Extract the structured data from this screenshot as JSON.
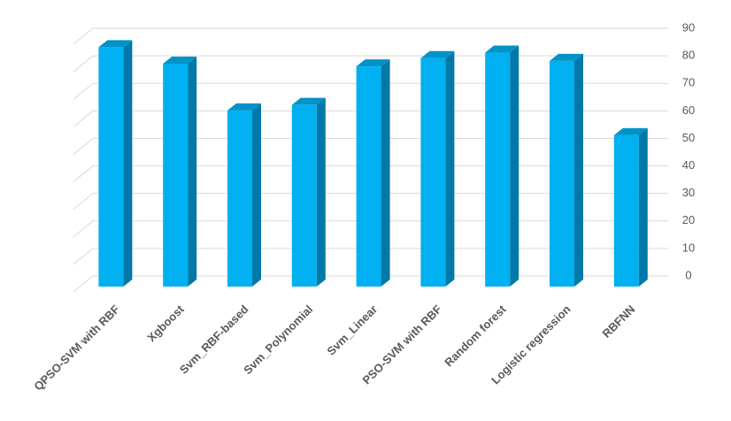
{
  "chart_data": {
    "type": "bar",
    "categories": [
      "QPSO-SVM with RBF",
      "Xgboost",
      "Svm_RBF-based",
      "Svm_Polynomial",
      "Svm_Linear",
      "PSO-SVM with RBF",
      "Random forest",
      "Logistic regression",
      "RBFNN"
    ],
    "values": [
      87,
      81,
      64,
      66,
      80,
      83,
      85,
      82,
      55
    ],
    "color": "#00b0f0",
    "ylim": [
      0,
      90
    ],
    "yticks": [
      0,
      10,
      20,
      30,
      40,
      50,
      60,
      70,
      80,
      90
    ],
    "grid": true
  }
}
